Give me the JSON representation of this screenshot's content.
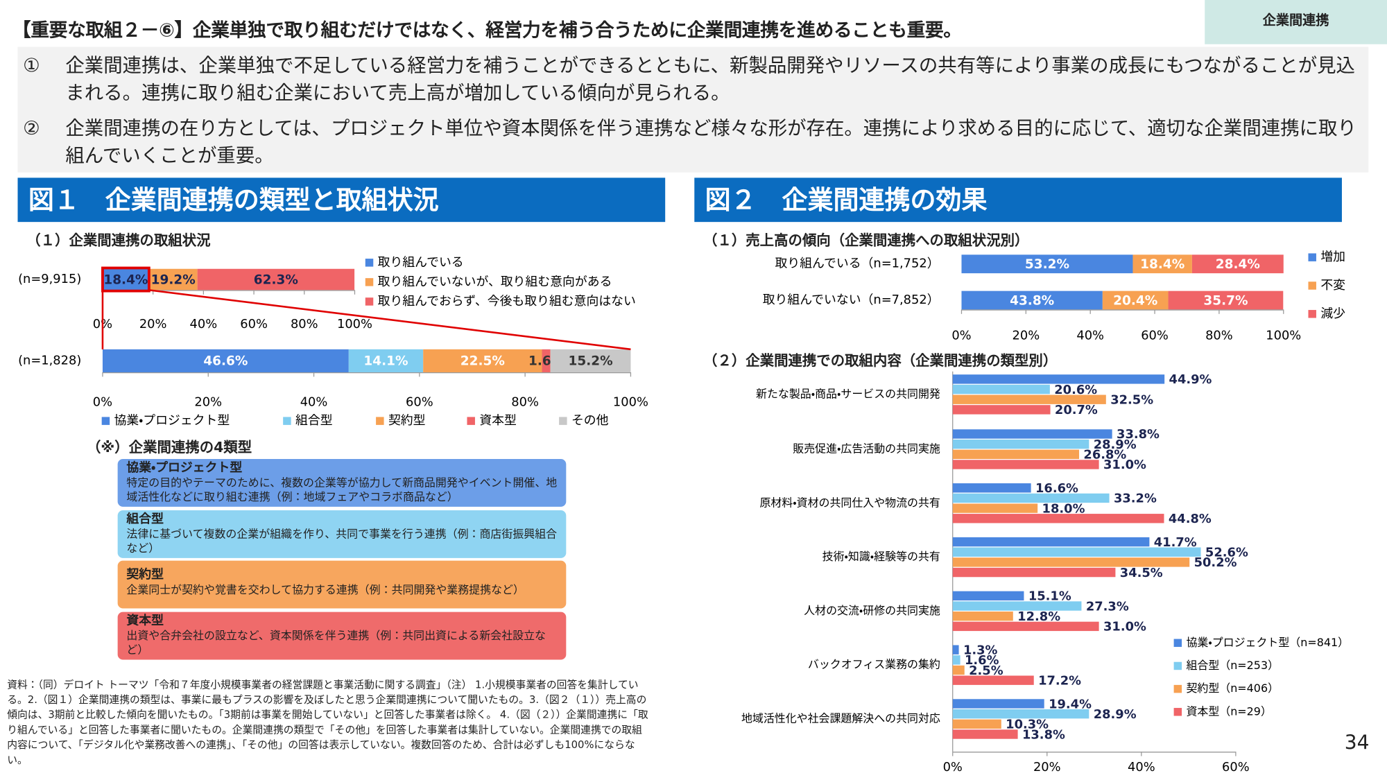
{
  "header": {
    "title": "【重要な取組２－⑥】企業単独で取り組むだけではなく、経営力を補う合うために企業間連携を進めることも重要。",
    "tag": "企業間連携"
  },
  "bullets": [
    {
      "marker": "①",
      "text": "企業間連携は、企業単独で不足している経営力を補うことができるとともに、新製品開発やリソースの共有等により事業の成長にもつながることが見込まれる。連携に取り組む企業において売上高が増加している傾向が見られる。"
    },
    {
      "marker": "②",
      "text": "企業間連携の在り方としては、プロジェクト単位や資本関係を伴う連携など様々な形が存在。連携により求める目的に応じて、適切な企業間連携に取り組んでいくことが重要。"
    }
  ],
  "figure1": {
    "title": "図１　企業間連携の類型と取組状況",
    "subtitle": "（１）企業間連携の取組状況",
    "types_title": "（※）企業間連携の4類型",
    "types": [
      {
        "name": "協業・プロジェクト型",
        "text": "特定の目的やテーマのために、複数の企業等が協力して新商品開発やイベント開催、地域活性化などに取り組む連携（例：地域フェアやコラボ商品など）"
      },
      {
        "name": "組合型",
        "text": "法律に基づいて複数の企業が組織を作り、共同で事業を行う連携（例：商店街振興組合など）"
      },
      {
        "name": "契約型",
        "text": "企業同士が契約や覚書を交わして協力する連携（例：共同開発や業務提携など）"
      },
      {
        "name": "資本型",
        "text": "出資や合弁会社の設立など、資本関係を伴う連携（例：共同出資による新会社設立など）"
      }
    ]
  },
  "figure2": {
    "title": "図２　企業間連携の効果",
    "subtitle1": "（１）売上高の傾向（企業間連携への取組状況別）",
    "subtitle2": "（２）企業間連携での取組内容（企業間連携の類型別）"
  },
  "source": "資料：（同）デロイト トーマツ「令和７年度小規模事業者の経営課題と事業活動に関する調査」（注） 1.小規模事業者の回答を集計している。2.（図１）企業間連携の類型は、事業に最もプラスの影響を及ぼしたと思う企業間連携について聞いたもの。3.（図２（１））売上高の傾向は、3期前と比較した傾向を聞いたもの。「3期前は事業を開始していない」と回答した事業者は除く。 4.（図（２））企業間連携に「取り組んでいる」と回答した事業者に聞いたもの。企業間連携の類型で「その他」を回答した事業者は集計していない。企業間連携での取組内容について、「デジタル化や業務改善への連携」、「その他」の回答は表示していない。複数回答のため、合計は必ずしも100%にならない。",
  "page_number": "34",
  "chart_data": [
    {
      "type": "bar",
      "orientation": "horizontal",
      "stacked": true,
      "categories": [
        "(n=9,915)"
      ],
      "series": [
        {
          "name": "取り組んでいる",
          "color": "#4a86e0",
          "values": [
            18.4
          ],
          "value_labels": [
            "18.4%"
          ]
        },
        {
          "name": "取り組んでいないが、取り組む意向がある",
          "color": "#f7a152",
          "values": [
            19.2
          ],
          "value_labels": [
            "19.2%"
          ]
        },
        {
          "name": "取り組んでおらず、今後も取り組む意向はない",
          "color": "#f06467",
          "values": [
            62.3
          ],
          "value_labels": [
            "62.3%"
          ]
        }
      ],
      "xlim": [
        0,
        100
      ],
      "xticks": [
        {
          "value": 0,
          "label": "0%"
        },
        {
          "value": 20,
          "label": "20%"
        },
        {
          "value": 40,
          "label": "40%"
        },
        {
          "value": 60,
          "label": "60%"
        },
        {
          "value": 80,
          "label": "80%"
        },
        {
          "value": 100,
          "label": "100%"
        }
      ],
      "legend": "right"
    },
    {
      "type": "bar",
      "orientation": "horizontal",
      "stacked": true,
      "categories": [
        "(n=1,828)"
      ],
      "series": [
        {
          "name": "協業・プロジェクト型",
          "color": "#4a86e0",
          "values": [
            46.6
          ],
          "value_labels": [
            "46.6%"
          ]
        },
        {
          "name": "組合型",
          "color": "#7fcdf0",
          "values": [
            14.1
          ],
          "value_labels": [
            "14.1%"
          ]
        },
        {
          "name": "契約型",
          "color": "#f7a152",
          "values": [
            22.5
          ],
          "value_labels": [
            "22.5%"
          ]
        },
        {
          "name": "資本型",
          "color": "#f06467",
          "values": [
            1.6
          ],
          "value_labels": [
            "1.6%"
          ]
        },
        {
          "name": "その他",
          "color": "#c8c8c8",
          "values": [
            15.2
          ],
          "value_labels": [
            "15.2%"
          ]
        }
      ],
      "xlim": [
        0,
        100
      ],
      "xticks": [
        {
          "value": 0,
          "label": "0%"
        },
        {
          "value": 20,
          "label": "20%"
        },
        {
          "value": 40,
          "label": "40%"
        },
        {
          "value": 60,
          "label": "60%"
        },
        {
          "value": 80,
          "label": "80%"
        },
        {
          "value": 100,
          "label": "100%"
        }
      ],
      "legend": "bottom"
    },
    {
      "type": "bar",
      "orientation": "horizontal",
      "stacked": true,
      "categories": [
        "取り組んでいる（n=1,752）",
        "取り組んでいない（n=7,852）"
      ],
      "series": [
        {
          "name": "増加",
          "color": "#4a86e0",
          "values": [
            53.2,
            43.8
          ],
          "value_labels": [
            "53.2%",
            "43.8%"
          ]
        },
        {
          "name": "不変",
          "color": "#f7a152",
          "values": [
            18.4,
            20.4
          ],
          "value_labels": [
            "18.4%",
            "20.4%"
          ]
        },
        {
          "name": "減少",
          "color": "#f06467",
          "values": [
            28.4,
            35.7
          ],
          "value_labels": [
            "28.4%",
            "35.7%"
          ]
        }
      ],
      "xlim": [
        0,
        100
      ],
      "xticks": [
        {
          "value": 0,
          "label": "0%"
        },
        {
          "value": 20,
          "label": "20%"
        },
        {
          "value": 40,
          "label": "40%"
        },
        {
          "value": 60,
          "label": "60%"
        },
        {
          "value": 80,
          "label": "80%"
        },
        {
          "value": 100,
          "label": "100%"
        }
      ],
      "legend": "right"
    },
    {
      "type": "bar",
      "orientation": "horizontal",
      "stacked": false,
      "categories": [
        "新たな製品・商品・サービスの共同開発",
        "販売促進・広告活動の共同実施",
        "原材料・資材の共同仕入や物流の共有",
        "技術・知識・経験等の共有",
        "人材の交流・研修の共同実施",
        "バックオフィス業務の集約",
        "地域活性化や社会課題解決への共同対応"
      ],
      "series": [
        {
          "name": "協業・プロジェクト型（n=841）",
          "color": "#4a86e0",
          "values": [
            44.9,
            33.8,
            16.6,
            41.7,
            15.1,
            1.3,
            19.4
          ],
          "value_labels": [
            "44.9%",
            "33.8%",
            "16.6%",
            "41.7%",
            "15.1%",
            "1.3%",
            "19.4%"
          ]
        },
        {
          "name": "組合型（n=253）",
          "color": "#7fcdf0",
          "values": [
            20.6,
            28.9,
            33.2,
            52.6,
            27.3,
            1.6,
            28.9
          ],
          "value_labels": [
            "20.6%",
            "28.9%",
            "33.2%",
            "52.6%",
            "27.3%",
            "1.6%",
            "28.9%"
          ]
        },
        {
          "name": "契約型（n=406）",
          "color": "#f7a152",
          "values": [
            32.5,
            26.8,
            18.0,
            50.2,
            12.8,
            2.5,
            10.3
          ],
          "value_labels": [
            "32.5%",
            "26.8%",
            "18.0%",
            "50.2%",
            "12.8%",
            "2.5%",
            "10.3%"
          ]
        },
        {
          "name": "資本型（n=29）",
          "color": "#f06467",
          "values": [
            20.7,
            31.0,
            44.8,
            34.5,
            31.0,
            17.2,
            13.8
          ],
          "value_labels": [
            "20.7%",
            "31.0%",
            "44.8%",
            "34.5%",
            "31.0%",
            "17.2%",
            "13.8%"
          ]
        }
      ],
      "xlim": [
        0,
        60
      ],
      "xticks": [
        {
          "value": 0,
          "label": "0%"
        },
        {
          "value": 20,
          "label": "20%"
        },
        {
          "value": 40,
          "label": "40%"
        },
        {
          "value": 60,
          "label": "60%"
        }
      ],
      "legend": "lower right"
    }
  ]
}
